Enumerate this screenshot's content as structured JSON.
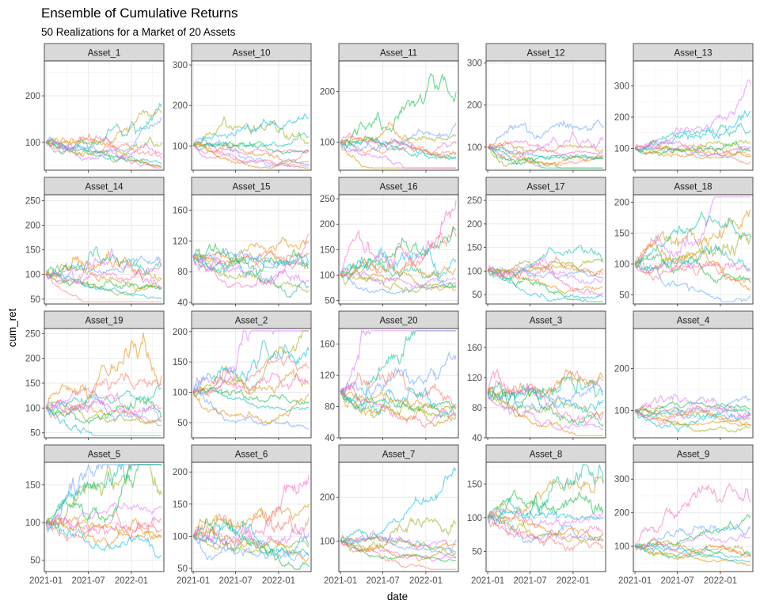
{
  "chart_data": {
    "type": "line",
    "title": "Ensemble of Cumulative Returns",
    "subtitle": "50 Realizations for a Market of 20 Assets",
    "xlabel": "date",
    "ylabel": "cum_ret",
    "x_ticks": [
      "2021-01",
      "2021-07",
      "2022-01"
    ],
    "xlim": [
      "2020-12-25",
      "2022-05-20"
    ],
    "grid": true,
    "legend": "none",
    "series_colors": [
      "#F8766D",
      "#D39200",
      "#93AA00",
      "#00BA38",
      "#00C19F",
      "#00B9E3",
      "#619CFF",
      "#DB72FB",
      "#FF61C3",
      "#E58700"
    ],
    "panels": [
      {
        "name": "Asset_1",
        "ylim": [
          40,
          275
        ],
        "yticks": [
          100,
          200
        ]
      },
      {
        "name": "Asset_10",
        "ylim": [
          40,
          310
        ],
        "yticks": [
          100,
          200,
          300
        ]
      },
      {
        "name": "Asset_11",
        "ylim": [
          45,
          260
        ],
        "yticks": [
          100,
          200
        ]
      },
      {
        "name": "Asset_12",
        "ylim": [
          45,
          305
        ],
        "yticks": [
          100,
          200,
          300
        ]
      },
      {
        "name": "Asset_13",
        "ylim": [
          30,
          380
        ],
        "yticks": [
          100,
          200,
          300
        ]
      },
      {
        "name": "Asset_14",
        "ylim": [
          40,
          262
        ],
        "yticks": [
          50,
          100,
          150,
          200,
          250
        ]
      },
      {
        "name": "Asset_15",
        "ylim": [
          38,
          180
        ],
        "yticks": [
          40,
          80,
          120,
          160
        ]
      },
      {
        "name": "Asset_16",
        "ylim": [
          43,
          258
        ],
        "yticks": [
          50,
          100,
          150,
          200,
          250
        ]
      },
      {
        "name": "Asset_17",
        "ylim": [
          30,
          262
        ],
        "yticks": [
          50,
          100,
          150,
          200,
          250
        ]
      },
      {
        "name": "Asset_18",
        "ylim": [
          35,
          212
        ],
        "yticks": [
          50,
          100,
          150,
          200
        ]
      },
      {
        "name": "Asset_19",
        "ylim": [
          40,
          260
        ],
        "yticks": [
          50,
          100,
          150,
          200,
          250
        ]
      },
      {
        "name": "Asset_2",
        "ylim": [
          25,
          205
        ],
        "yticks": [
          50,
          100,
          150,
          200
        ]
      },
      {
        "name": "Asset_20",
        "ylim": [
          40,
          180
        ],
        "yticks": [
          40,
          80,
          120,
          160
        ]
      },
      {
        "name": "Asset_3",
        "ylim": [
          40,
          185
        ],
        "yticks": [
          40,
          80,
          120,
          160
        ]
      },
      {
        "name": "Asset_4",
        "ylim": [
          35,
          295
        ],
        "yticks": [
          100,
          200
        ]
      },
      {
        "name": "Asset_5",
        "ylim": [
          35,
          180
        ],
        "yticks": [
          50,
          100,
          150
        ]
      },
      {
        "name": "Asset_6",
        "ylim": [
          45,
          215
        ],
        "yticks": [
          50,
          100,
          150,
          200
        ]
      },
      {
        "name": "Asset_7",
        "ylim": [
          30,
          280
        ],
        "yticks": [
          100,
          200
        ]
      },
      {
        "name": "Asset_8",
        "ylim": [
          20,
          182
        ],
        "yticks": [
          50,
          100,
          150
        ]
      },
      {
        "name": "Asset_9",
        "ylim": [
          25,
          350
        ],
        "yticks": [
          100,
          200,
          300
        ]
      }
    ]
  }
}
